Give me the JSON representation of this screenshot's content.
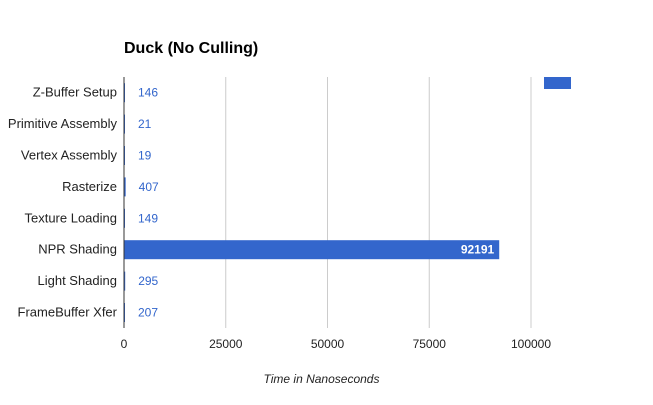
{
  "chart_data": {
    "type": "bar",
    "orientation": "horizontal",
    "title": "Duck (No Culling)",
    "xlabel": "Time in Nanoseconds",
    "ylabel": "",
    "categories": [
      "Z-Buffer Setup",
      "Primitive Assembly",
      "Vertex Assembly",
      "Rasterize",
      "Texture Loading",
      "NPR Shading",
      "Light Shading",
      "FrameBuffer Xfer"
    ],
    "values": [
      146,
      21,
      19,
      407,
      149,
      92191,
      295,
      207
    ],
    "value_labels": [
      "146",
      "21",
      "19",
      "407",
      "149",
      "92191",
      "295",
      "207"
    ],
    "xlim": [
      0,
      100000
    ],
    "xticks": [
      0,
      25000,
      50000,
      75000,
      100000
    ],
    "xtick_labels": [
      "0",
      "25000",
      "50000",
      "75000",
      "100000"
    ],
    "grid": true,
    "legend": "top-right (color swatch only)",
    "colors": {
      "bar": "#3366cc",
      "grid": "#cccccc",
      "axis": "#333333",
      "label": "#222222",
      "value_label": "#3366cc",
      "value_label_inside": "#ffffff"
    }
  }
}
